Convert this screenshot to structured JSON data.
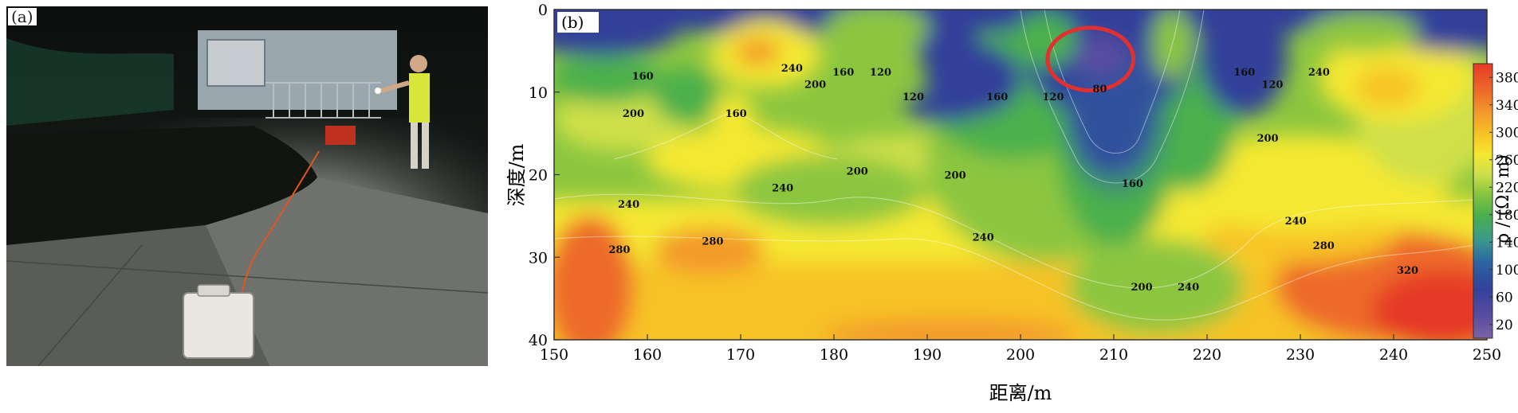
{
  "panel_a": {
    "label": "(a)",
    "icons": [
      "night-sinkhole-photo",
      "surveyor-icon",
      "instrument-case-icon",
      "cable-icon",
      "fence-icon",
      "signboard-icon"
    ]
  },
  "chart_data": {
    "type": "heatmap",
    "panel_label": "(b)",
    "xlabel": "距离/m",
    "ylabel": "深度/m",
    "xlim": [
      150,
      250
    ],
    "ylim": [
      0,
      40
    ],
    "y_inverted": true,
    "x_ticks": [
      "150",
      "160",
      "170",
      "180",
      "190",
      "200",
      "210",
      "220",
      "230",
      "240",
      "250"
    ],
    "y_ticks": [
      "0",
      "10",
      "20",
      "30",
      "40"
    ],
    "colorbar": {
      "label": "ρ / (Ω · m)",
      "ticks": [
        "20",
        "60",
        "100",
        "140",
        "180",
        "220",
        "260",
        "300",
        "340",
        "380"
      ],
      "range": [
        0,
        400
      ],
      "colors": [
        "#7b62a6",
        "#5a4da0",
        "#33419a",
        "#2c67a1",
        "#3a9a8c",
        "#4bb04c",
        "#8cc63f",
        "#cfe04a",
        "#f5e830",
        "#f7c325",
        "#f39a2c",
        "#ee6a2a",
        "#e53a26"
      ]
    },
    "contour_labels": [
      {
        "text": "240",
        "x": 175.5,
        "y": 7.5
      },
      {
        "text": "160",
        "x": 159.5,
        "y": 8.5
      },
      {
        "text": "200",
        "x": 178,
        "y": 9.5
      },
      {
        "text": "160",
        "x": 181,
        "y": 8
      },
      {
        "text": "120",
        "x": 185,
        "y": 8
      },
      {
        "text": "120",
        "x": 188.5,
        "y": 11
      },
      {
        "text": "160",
        "x": 197.5,
        "y": 11
      },
      {
        "text": "120",
        "x": 203.5,
        "y": 11
      },
      {
        "text": "80",
        "x": 208.5,
        "y": 10
      },
      {
        "text": "160",
        "x": 224,
        "y": 8
      },
      {
        "text": "120",
        "x": 227,
        "y": 9.5
      },
      {
        "text": "240",
        "x": 232,
        "y": 8
      },
      {
        "text": "200",
        "x": 158.5,
        "y": 13
      },
      {
        "text": "160",
        "x": 169.5,
        "y": 13
      },
      {
        "text": "200",
        "x": 226.5,
        "y": 16
      },
      {
        "text": "200",
        "x": 182.5,
        "y": 20
      },
      {
        "text": "200",
        "x": 193,
        "y": 20.5
      },
      {
        "text": "240",
        "x": 174.5,
        "y": 22
      },
      {
        "text": "160",
        "x": 212,
        "y": 21.5
      },
      {
        "text": "240",
        "x": 158,
        "y": 24
      },
      {
        "text": "240",
        "x": 229.5,
        "y": 26
      },
      {
        "text": "240",
        "x": 196,
        "y": 28
      },
      {
        "text": "280",
        "x": 157,
        "y": 29.5
      },
      {
        "text": "280",
        "x": 167,
        "y": 28.5
      },
      {
        "text": "280",
        "x": 232.5,
        "y": 29
      },
      {
        "text": "320",
        "x": 241.5,
        "y": 32
      },
      {
        "text": "200",
        "x": 213,
        "y": 34
      },
      {
        "text": "240",
        "x": 218,
        "y": 34
      }
    ],
    "annotation": {
      "shape": "ellipse",
      "color": "#e03030",
      "center_x": 207.5,
      "center_y": 6,
      "radius_x": 4.6,
      "radius_y": 3.8
    }
  }
}
